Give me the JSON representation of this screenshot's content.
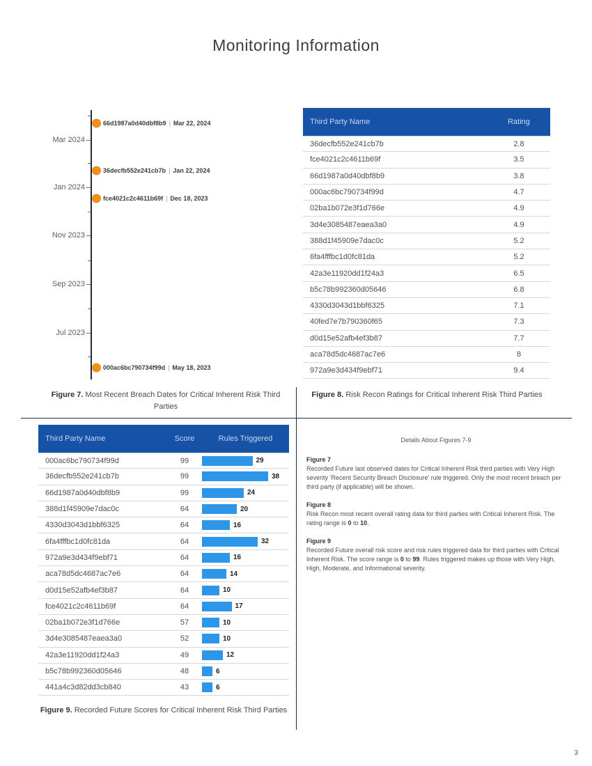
{
  "page": {
    "title": "Monitoring Information",
    "page_number": "3"
  },
  "colors": {
    "table_header_bg": "#1653A6",
    "table_header_text": "#C7D6F0",
    "bar_blue": "#2D96E8",
    "marker_orange": "#F28E1E",
    "divider": "#1F2D3D"
  },
  "captions": {
    "fig7_label": "Figure 7.",
    "fig7_text": " Most Recent Breach Dates for Critical Inherent Risk Third Parties",
    "fig8_label": "Figure 8.",
    "fig8_text": " Risk Recon Ratings for Critical Inherent Risk Third Parties",
    "fig9_label": "Figure 9.",
    "fig9_text": " Recorded Future Scores for Critical Inherent Risk Third Parties"
  },
  "details": {
    "heading": "Details About Figures 7-9",
    "sections": [
      {
        "title": "Figure 7",
        "segments": [
          {
            "t": "Recorded Future last observed dates for Critical Inherent Risk third parties with Very High severity ‘Recent Security Breach Disclosure’ rule triggered. Only the most recent breach per third party (if applicable) will be shown.",
            "b": false
          }
        ]
      },
      {
        "title": "Figure 8",
        "segments": [
          {
            "t": "Risk Recon most recent overall rating data for third parties with Critical Inherent Risk. The rating range is ",
            "b": false
          },
          {
            "t": "0",
            "b": true
          },
          {
            "t": " to ",
            "b": false
          },
          {
            "t": "10",
            "b": true
          },
          {
            "t": ".",
            "b": false
          }
        ]
      },
      {
        "title": "Figure 9",
        "segments": [
          {
            "t": "Recorded Future overall risk score and risk rules triggered data for third parties with Critical Inherent Risk. The score range is ",
            "b": false
          },
          {
            "t": "0",
            "b": true
          },
          {
            "t": " to ",
            "b": false
          },
          {
            "t": "99",
            "b": true
          },
          {
            "t": ". Rules triggered makes up those with Very High, High, Moderate, and Informational severity.",
            "b": false
          }
        ]
      }
    ]
  },
  "chart_data": [
    {
      "id": "fig7_timeline",
      "type": "scatter",
      "title": "Most Recent Breach Dates for Critical Inherent Risk Third Parties",
      "axis": {
        "range_top_iso": "2024-04-08",
        "range_bottom_iso": "2023-05-03",
        "major_ticks": [
          {
            "label": "Mar 2024",
            "iso": "2024-03-01"
          },
          {
            "label": "Jan 2024",
            "iso": "2024-01-01"
          },
          {
            "label": "Nov 2023",
            "iso": "2023-11-01"
          },
          {
            "label": "Sep 2023",
            "iso": "2023-09-01"
          },
          {
            "label": "Jul 2023",
            "iso": "2023-07-01"
          }
        ],
        "minor_ticks_iso": [
          "2024-04-01",
          "2024-02-01",
          "2023-12-01",
          "2023-10-01",
          "2023-08-01",
          "2023-06-01"
        ]
      },
      "marker_color": "#F28E1E",
      "label_separator": "|",
      "points": [
        {
          "name": "66d1987a0d40dbf8b9",
          "date_label": "Mar 22, 2024",
          "iso": "2024-03-22"
        },
        {
          "name": "36decfb552e241cb7b",
          "date_label": "Jan 22, 2024",
          "iso": "2024-01-22"
        },
        {
          "name": "fce4021c2c4611b69f",
          "date_label": "Dec 18, 2023",
          "iso": "2023-12-18"
        },
        {
          "name": "000ac6bc790734f99d",
          "date_label": "May 18, 2023",
          "iso": "2023-05-18"
        }
      ]
    },
    {
      "id": "fig8_ratings_table",
      "type": "table",
      "title": "Risk Recon Ratings for Critical Inherent Risk Third Parties",
      "columns": [
        "Third Party Name",
        "Rating"
      ],
      "rating_range": [
        0,
        10
      ],
      "rows": [
        [
          "36decfb552e241cb7b",
          "2.8"
        ],
        [
          "fce4021c2c4611b69f",
          "3.5"
        ],
        [
          "66d1987a0d40dbf8b9",
          "3.8"
        ],
        [
          "000ac6bc790734f99d",
          "4.7"
        ],
        [
          "02ba1b072e3f1d766e",
          "4.9"
        ],
        [
          "3d4e3085487eaea3a0",
          "4.9"
        ],
        [
          "388d1f45909e7dac0c",
          "5.2"
        ],
        [
          "6fa4fffbc1d0fc81da",
          "5.2"
        ],
        [
          "42a3e11920dd1f24a3",
          "6.5"
        ],
        [
          "b5c78b992360d05646",
          "6.8"
        ],
        [
          "4330d3043d1bbf6325",
          "7.1"
        ],
        [
          "40fed7e7b790360f65",
          "7.3"
        ],
        [
          "d0d15e52afb4ef3b87",
          "7.7"
        ],
        [
          "aca78d5dc4687ac7e6",
          "8"
        ],
        [
          "972a9e3d434f9ebf71",
          "9.4"
        ]
      ]
    },
    {
      "id": "fig9_scores_bars",
      "type": "bar",
      "title": "Recorded Future Scores for Critical Inherent Risk Third Parties",
      "columns": [
        "Third Party Name",
        "Score",
        "Rules Triggered"
      ],
      "score_range": [
        0,
        99
      ],
      "bar_color": "#2D96E8",
      "rows": [
        {
          "name": "000ac6bc790734f99d",
          "score": "99",
          "rules": 29
        },
        {
          "name": "36decfb552e241cb7b",
          "score": "99",
          "rules": 38
        },
        {
          "name": "66d1987a0d40dbf8b9",
          "score": "99",
          "rules": 24
        },
        {
          "name": "388d1f45909e7dac0c",
          "score": "64",
          "rules": 20
        },
        {
          "name": "4330d3043d1bbf6325",
          "score": "64",
          "rules": 16
        },
        {
          "name": "6fa4fffbc1d0fc81da",
          "score": "64",
          "rules": 32
        },
        {
          "name": "972a9e3d434f9ebf71",
          "score": "64",
          "rules": 16
        },
        {
          "name": "aca78d5dc4687ac7e6",
          "score": "64",
          "rules": 14
        },
        {
          "name": "d0d15e52afb4ef3b87",
          "score": "64",
          "rules": 10
        },
        {
          "name": "fce4021c2c4611b69f",
          "score": "64",
          "rules": 17
        },
        {
          "name": "02ba1b072e3f1d766e",
          "score": "57",
          "rules": 10
        },
        {
          "name": "3d4e3085487eaea3a0",
          "score": "52",
          "rules": 10
        },
        {
          "name": "42a3e11920dd1f24a3",
          "score": "49",
          "rules": 12
        },
        {
          "name": "b5c78b992360d05646",
          "score": "48",
          "rules": 6
        },
        {
          "name": "441a4c3d82dd3cb840",
          "score": "43",
          "rules": 6
        }
      ]
    }
  ]
}
